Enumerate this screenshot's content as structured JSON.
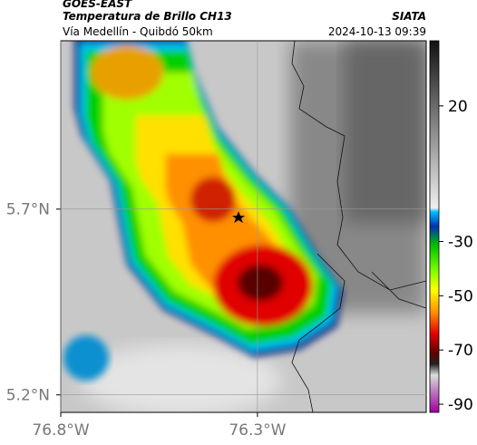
{
  "header": {
    "source": "GOES-EAST",
    "title": "Temperatura de Brillo CH13",
    "subtitle": "Vía Medellín - Quibdó 50km",
    "agency": "SIATA",
    "timestamp": "2024-10-13 09:39"
  },
  "map": {
    "latlim": [
      5.153,
      6.153
    ],
    "lonlim": [
      -76.8,
      -75.871
    ],
    "latticks": [
      {
        "value": 5.7,
        "label": "5.7°N"
      },
      {
        "value": 5.2,
        "label": "5.2°N"
      }
    ],
    "lonticks": [
      {
        "value": -76.8,
        "label": "76.8°W"
      },
      {
        "value": -76.3,
        "label": "76.3°W"
      }
    ]
  },
  "colorbar": {
    "clim": [
      -93,
      44
    ],
    "ticks": [
      20,
      -30,
      -50,
      -70,
      -90
    ]
  }
}
